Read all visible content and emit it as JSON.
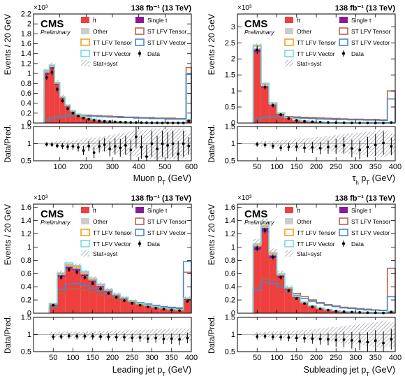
{
  "colors": {
    "ttbar": "#ef4040",
    "other": "#cccccc",
    "single_t": "#8b1a9a",
    "st_tensor": "#b5654a",
    "st_vector": "#4a86c8",
    "tt_tensor": "#f5a21b",
    "tt_vector": "#7ad6e8",
    "data": "#000000"
  },
  "common": {
    "lumi": "138 fb⁻¹ (13 TeV)",
    "cms": "CMS",
    "preliminary": "Preliminary",
    "exponent": "×10³",
    "ylabel_top": "Events / 20 GeV",
    "ylabel_ratio": "Data/Pred.",
    "legend": {
      "ttbar": "t̄t",
      "single_t": "Single t",
      "other": "Other",
      "st_tensor": "ST LFV Tensor",
      "st_vector": "ST LFV Vector",
      "tt_tensor": "TT LFV Tensor",
      "tt_vector": "TT LFV Vector",
      "data": "Data",
      "stat_syst": "Stat+syst"
    }
  },
  "chart_data": [
    {
      "type": "bar",
      "stacked": true,
      "xlabel": "Muon p_T (GeV)",
      "ylabel": "Events / 20 GeV",
      "y_scale": "×10³",
      "xlim": [
        0,
        600
      ],
      "ylim": [
        0,
        2.2
      ],
      "xticks": [
        100,
        200,
        300,
        400,
        500,
        600
      ],
      "yticks": [
        0,
        0.2,
        0.4,
        0.6,
        0.8,
        1,
        1.2,
        1.4,
        1.6,
        1.8,
        2,
        2.2
      ],
      "ratio_ylim": [
        0.5,
        1.5
      ],
      "ratio_yticks": [
        0.5,
        1,
        1.5
      ],
      "bin_edges": [
        40,
        60,
        80,
        100,
        120,
        140,
        160,
        180,
        200,
        220,
        240,
        260,
        280,
        300,
        320,
        340,
        360,
        380,
        400,
        420,
        440,
        460,
        480,
        500,
        520,
        540,
        560,
        580,
        600
      ],
      "stack": {
        "ttbar": [
          0.98,
          1.08,
          0.76,
          0.5,
          0.33,
          0.23,
          0.16,
          0.12,
          0.09,
          0.07,
          0.05,
          0.04,
          0.03,
          0.025,
          0.02,
          0.017,
          0.014,
          0.011,
          0.009,
          0.008,
          0.007,
          0.006,
          0.005,
          0.004,
          0.004,
          0.003,
          0.003,
          0.05
        ],
        "single_t": [
          0.04,
          0.05,
          0.03,
          0.02,
          0.015,
          0.01,
          0.008,
          0.006,
          0.005,
          0.004,
          0.003,
          0.003,
          0.002,
          0.002,
          0.002,
          0.001,
          0.001,
          0.001,
          0.001,
          0.001,
          0.001,
          0.001,
          0.001,
          0.001,
          0.001,
          0.001,
          0.001,
          0.01
        ],
        "other": [
          0.02,
          0.02,
          0.015,
          0.01,
          0.008,
          0.006,
          0.005,
          0.004,
          0.003,
          0.003,
          0.002,
          0.002,
          0.002,
          0.001,
          0.001,
          0.001,
          0.001,
          0.001,
          0.001,
          0.001,
          0.001,
          0.001,
          0.001,
          0.001,
          0.001,
          0.001,
          0.001,
          0.005
        ]
      },
      "signals": {
        "st_tensor": [
          0.08,
          0.12,
          0.14,
          0.16,
          0.17,
          0.17,
          0.17,
          0.16,
          0.16,
          0.15,
          0.15,
          0.14,
          0.14,
          0.13,
          0.13,
          0.12,
          0.12,
          0.12,
          0.11,
          0.11,
          0.11,
          0.1,
          0.1,
          0.1,
          0.1,
          0.09,
          0.09,
          1.12
        ],
        "st_vector": [
          0.06,
          0.09,
          0.11,
          0.13,
          0.14,
          0.15,
          0.15,
          0.15,
          0.14,
          0.14,
          0.13,
          0.13,
          0.12,
          0.12,
          0.11,
          0.11,
          0.11,
          0.1,
          0.1,
          0.1,
          0.09,
          0.09,
          0.09,
          0.08,
          0.08,
          0.08,
          0.08,
          0.98
        ],
        "tt_tensor": [
          1.05,
          1.15,
          0.8,
          0.52,
          0.35,
          0.24,
          0.17,
          0.13,
          0.1,
          0.08,
          0.06,
          0.05,
          0.04,
          0.03,
          0.025,
          0.02,
          0.017,
          0.014,
          0.012,
          0.01,
          0.009,
          0.008,
          0.007,
          0.006,
          0.005,
          0.005,
          0.004,
          0.07
        ],
        "tt_vector": [
          1.07,
          1.17,
          0.82,
          0.53,
          0.36,
          0.25,
          0.18,
          0.14,
          0.11,
          0.08,
          0.06,
          0.05,
          0.04,
          0.03,
          0.025,
          0.02,
          0.017,
          0.014,
          0.012,
          0.01,
          0.009,
          0.008,
          0.007,
          0.006,
          0.005,
          0.005,
          0.004,
          0.07
        ]
      },
      "data": [
        0.92,
        1.02,
        0.68,
        0.45,
        0.29,
        0.2,
        0.14,
        0.1,
        0.075,
        0.055,
        0.042,
        0.034,
        0.027,
        0.022,
        0.018,
        0.015,
        0.012,
        0.01,
        0.008,
        0.007,
        0.006,
        0.005,
        0.004,
        0.004,
        0.003,
        0.003,
        0.003,
        0.04
      ],
      "ratio": [
        0.98,
        0.97,
        0.94,
        0.93,
        0.91,
        0.92,
        0.89,
        0.8,
        0.93,
        0.74,
        0.92,
        0.97,
        0.85,
        0.92,
        0.88,
        0.95,
        0.82,
        1.2,
        0.9,
        0.62,
        1.0,
        0.85,
        1.0,
        0.95,
        1.0,
        0.7,
        1.0,
        0.93
      ],
      "band": [
        0.05,
        0.06,
        0.07,
        0.08,
        0.09,
        0.1,
        0.12,
        0.14,
        0.16,
        0.18,
        0.2,
        0.22,
        0.25,
        0.28,
        0.3,
        0.32,
        0.35,
        0.38,
        0.4,
        0.42,
        0.45,
        0.45,
        0.45,
        0.45,
        0.45,
        0.45,
        0.45,
        0.3
      ],
      "legend_placement": "top-right"
    },
    {
      "type": "bar",
      "stacked": true,
      "xlabel": "τ_h p_T (GeV)",
      "ylabel": "Events / 20 GeV",
      "y_scale": "×10³",
      "xlim": [
        0,
        400
      ],
      "ylim": [
        0,
        3.4
      ],
      "xticks": [
        50,
        100,
        150,
        200,
        250,
        300,
        350,
        400
      ],
      "yticks": [
        0,
        0.5,
        1,
        1.5,
        2,
        2.5,
        3
      ],
      "ratio_ylim": [
        0.5,
        1.5
      ],
      "ratio_yticks": [
        0.5,
        1,
        1.5
      ],
      "bin_edges": [
        40,
        60,
        80,
        100,
        120,
        140,
        160,
        180,
        200,
        220,
        240,
        260,
        280,
        300,
        320,
        340,
        360,
        380,
        400
      ],
      "stack": {
        "ttbar": [
          2.2,
          1.1,
          0.55,
          0.27,
          0.15,
          0.09,
          0.06,
          0.04,
          0.03,
          0.02,
          0.015,
          0.012,
          0.009,
          0.007,
          0.006,
          0.005,
          0.004,
          0.02
        ],
        "single_t": [
          0.1,
          0.05,
          0.025,
          0.015,
          0.008,
          0.005,
          0.003,
          0.002,
          0.002,
          0.001,
          0.001,
          0.001,
          0.001,
          0.001,
          0.001,
          0.001,
          0.001,
          0.002
        ],
        "other": [
          0.05,
          0.03,
          0.015,
          0.008,
          0.005,
          0.003,
          0.002,
          0.002,
          0.001,
          0.001,
          0.001,
          0.001,
          0.001,
          0.001,
          0.001,
          0.001,
          0.001,
          0.001
        ]
      },
      "signals": {
        "st_tensor": [
          0.15,
          0.2,
          0.21,
          0.21,
          0.2,
          0.19,
          0.18,
          0.17,
          0.16,
          0.15,
          0.14,
          0.13,
          0.12,
          0.12,
          0.11,
          0.11,
          0.1,
          1.0
        ],
        "st_vector": [
          0.12,
          0.17,
          0.18,
          0.18,
          0.17,
          0.16,
          0.15,
          0.14,
          0.13,
          0.12,
          0.11,
          0.11,
          0.1,
          0.1,
          0.09,
          0.09,
          0.08,
          0.75
        ],
        "tt_tensor": [
          2.4,
          1.22,
          0.62,
          0.31,
          0.17,
          0.1,
          0.07,
          0.05,
          0.035,
          0.025,
          0.02,
          0.015,
          0.012,
          0.01,
          0.008,
          0.007,
          0.006,
          0.025
        ],
        "tt_vector": [
          2.43,
          1.24,
          0.63,
          0.32,
          0.17,
          0.1,
          0.07,
          0.05,
          0.035,
          0.025,
          0.02,
          0.015,
          0.012,
          0.01,
          0.008,
          0.007,
          0.006,
          0.025
        ]
      },
      "data": [
        2.28,
        1.12,
        0.55,
        0.26,
        0.14,
        0.085,
        0.055,
        0.037,
        0.027,
        0.019,
        0.014,
        0.011,
        0.008,
        0.006,
        0.005,
        0.004,
        0.003,
        0.015
      ],
      "ratio": [
        0.98,
        0.96,
        0.93,
        0.88,
        0.9,
        0.91,
        0.88,
        0.89,
        0.87,
        0.9,
        0.92,
        0.95,
        0.86,
        0.82,
        0.9,
        0.96,
        1.02,
        0.92
      ],
      "band": [
        0.06,
        0.07,
        0.08,
        0.1,
        0.12,
        0.14,
        0.16,
        0.18,
        0.2,
        0.22,
        0.25,
        0.28,
        0.3,
        0.32,
        0.35,
        0.38,
        0.4,
        0.3
      ],
      "legend_placement": "top-right"
    },
    {
      "type": "bar",
      "stacked": true,
      "xlabel": "Leading jet p_T (GeV)",
      "ylabel": "Events / 20 GeV",
      "y_scale": "×10³",
      "xlim": [
        0,
        400
      ],
      "ylim": [
        0,
        1.65
      ],
      "xticks": [
        50,
        100,
        150,
        200,
        250,
        300,
        350,
        400
      ],
      "yticks": [
        0,
        0.2,
        0.4,
        0.6,
        0.8,
        1,
        1.2,
        1.4,
        1.6
      ],
      "ratio_ylim": [
        0.5,
        1.5
      ],
      "ratio_yticks": [
        0.5,
        1,
        1.5
      ],
      "bin_edges": [
        40,
        60,
        80,
        100,
        120,
        140,
        160,
        180,
        200,
        220,
        240,
        260,
        280,
        300,
        320,
        340,
        360,
        380,
        400
      ],
      "stack": {
        "ttbar": [
          0.12,
          0.55,
          0.67,
          0.64,
          0.56,
          0.47,
          0.39,
          0.32,
          0.26,
          0.21,
          0.17,
          0.13,
          0.11,
          0.085,
          0.07,
          0.055,
          0.045,
          0.2
        ],
        "single_t": [
          0.01,
          0.03,
          0.035,
          0.033,
          0.029,
          0.025,
          0.021,
          0.017,
          0.014,
          0.011,
          0.009,
          0.007,
          0.006,
          0.005,
          0.004,
          0.003,
          0.003,
          0.012
        ],
        "other": [
          0.005,
          0.015,
          0.017,
          0.016,
          0.014,
          0.012,
          0.01,
          0.008,
          0.007,
          0.005,
          0.004,
          0.004,
          0.003,
          0.002,
          0.002,
          0.002,
          0.001,
          0.005
        ]
      },
      "signals": {
        "st_tensor": [
          0.08,
          0.3,
          0.36,
          0.37,
          0.35,
          0.32,
          0.28,
          0.25,
          0.22,
          0.19,
          0.16,
          0.14,
          0.12,
          0.1,
          0.09,
          0.08,
          0.07,
          0.62
        ],
        "st_vector": [
          0.1,
          0.36,
          0.44,
          0.45,
          0.42,
          0.38,
          0.34,
          0.3,
          0.26,
          0.22,
          0.19,
          0.16,
          0.14,
          0.12,
          0.1,
          0.09,
          0.08,
          0.78
        ],
        "tt_tensor": [
          0.14,
          0.6,
          0.73,
          0.7,
          0.61,
          0.51,
          0.43,
          0.35,
          0.28,
          0.23,
          0.18,
          0.14,
          0.12,
          0.095,
          0.075,
          0.06,
          0.05,
          0.22
        ],
        "tt_vector": [
          0.15,
          0.61,
          0.76,
          0.72,
          0.63,
          0.53,
          0.44,
          0.36,
          0.29,
          0.24,
          0.19,
          0.15,
          0.12,
          0.1,
          0.08,
          0.065,
          0.053,
          0.23
        ]
      },
      "data": [
        0.12,
        0.54,
        0.66,
        0.62,
        0.54,
        0.45,
        0.37,
        0.3,
        0.24,
        0.19,
        0.15,
        0.12,
        0.095,
        0.075,
        0.06,
        0.048,
        0.04,
        0.18
      ],
      "ratio": [
        0.93,
        0.94,
        0.96,
        0.95,
        0.95,
        0.95,
        0.94,
        0.93,
        0.92,
        0.92,
        0.9,
        0.91,
        0.88,
        0.9,
        0.87,
        0.88,
        0.86,
        0.9
      ],
      "band": [
        0.08,
        0.08,
        0.08,
        0.09,
        0.09,
        0.1,
        0.1,
        0.11,
        0.12,
        0.12,
        0.13,
        0.14,
        0.14,
        0.15,
        0.16,
        0.17,
        0.18,
        0.17
      ],
      "legend_placement": "top-right"
    },
    {
      "type": "bar",
      "stacked": true,
      "xlabel": "Subleading jet p_T (GeV)",
      "ylabel": "Events / 20 GeV",
      "y_scale": "×10³",
      "xlim": [
        0,
        400
      ],
      "ylim": [
        0,
        1.65
      ],
      "xticks": [
        50,
        100,
        150,
        200,
        250,
        300,
        350,
        400
      ],
      "yticks": [
        0,
        0.2,
        0.4,
        0.6,
        0.8,
        1,
        1.2,
        1.4,
        1.6
      ],
      "ratio_ylim": [
        0.5,
        1.5
      ],
      "ratio_yticks": [
        0.5,
        1,
        1.5
      ],
      "bin_edges": [
        40,
        60,
        80,
        100,
        120,
        140,
        160,
        180,
        200,
        220,
        240,
        260,
        280,
        300,
        320,
        340,
        360,
        380,
        400
      ],
      "stack": {
        "ttbar": [
          0.95,
          1.22,
          0.83,
          0.54,
          0.35,
          0.23,
          0.15,
          0.1,
          0.07,
          0.05,
          0.035,
          0.025,
          0.018,
          0.013,
          0.01,
          0.007,
          0.005,
          0.02
        ],
        "single_t": [
          0.06,
          0.07,
          0.045,
          0.03,
          0.02,
          0.013,
          0.009,
          0.006,
          0.004,
          0.003,
          0.002,
          0.002,
          0.001,
          0.001,
          0.001,
          0.001,
          0.001,
          0.002
        ],
        "other": [
          0.03,
          0.035,
          0.022,
          0.015,
          0.01,
          0.007,
          0.005,
          0.003,
          0.002,
          0.002,
          0.001,
          0.001,
          0.001,
          0.001,
          0.001,
          0.001,
          0.001,
          0.001
        ]
      },
      "signals": {
        "st_tensor": [
          0.4,
          0.52,
          0.5,
          0.44,
          0.37,
          0.3,
          0.25,
          0.2,
          0.16,
          0.13,
          0.11,
          0.09,
          0.08,
          0.07,
          0.06,
          0.05,
          0.045,
          0.68
        ],
        "st_vector": [
          0.35,
          0.47,
          0.45,
          0.4,
          0.33,
          0.27,
          0.22,
          0.18,
          0.15,
          0.12,
          0.1,
          0.08,
          0.07,
          0.06,
          0.05,
          0.045,
          0.04,
          0.25
        ],
        "tt_tensor": [
          1.03,
          1.32,
          0.9,
          0.58,
          0.38,
          0.25,
          0.16,
          0.11,
          0.075,
          0.055,
          0.04,
          0.028,
          0.02,
          0.015,
          0.011,
          0.008,
          0.006,
          0.025
        ],
        "tt_vector": [
          1.05,
          1.35,
          0.92,
          0.6,
          0.39,
          0.26,
          0.17,
          0.115,
          0.08,
          0.057,
          0.041,
          0.029,
          0.021,
          0.016,
          0.012,
          0.009,
          0.007,
          0.027
        ]
      },
      "data": [
        0.98,
        1.25,
        0.85,
        0.54,
        0.34,
        0.22,
        0.145,
        0.095,
        0.066,
        0.046,
        0.032,
        0.022,
        0.016,
        0.011,
        0.008,
        0.006,
        0.004,
        0.018
      ],
      "ratio": [
        0.94,
        0.95,
        0.93,
        0.92,
        0.91,
        0.9,
        0.89,
        0.88,
        0.87,
        0.86,
        0.84,
        0.85,
        0.83,
        0.8,
        0.78,
        0.82,
        0.75,
        0.86
      ],
      "band": [
        0.08,
        0.08,
        0.09,
        0.1,
        0.11,
        0.12,
        0.14,
        0.16,
        0.18,
        0.2,
        0.22,
        0.25,
        0.28,
        0.3,
        0.33,
        0.36,
        0.4,
        0.35
      ],
      "legend_placement": "top-right"
    }
  ]
}
